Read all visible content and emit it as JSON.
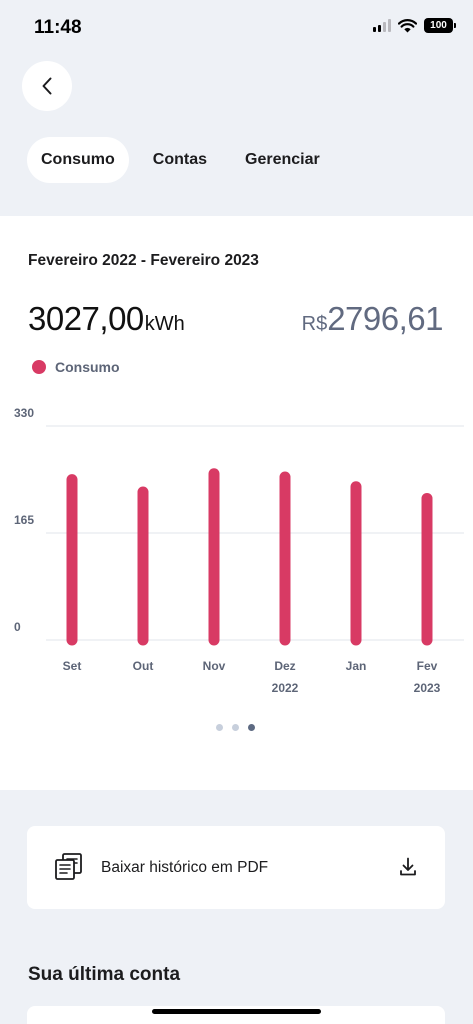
{
  "status_bar": {
    "time": "11:48",
    "battery": "100"
  },
  "tabs": [
    {
      "label": "Consumo",
      "active": true
    },
    {
      "label": "Contas",
      "active": false
    },
    {
      "label": "Gerenciar",
      "active": false
    }
  ],
  "summary": {
    "period": "Fevereiro 2022 - Fevereiro 2023",
    "kwh_value": "3027,00",
    "kwh_unit": "kWh",
    "price_currency": "R$",
    "price_value": "2796,61"
  },
  "legend": {
    "label": "Consumo"
  },
  "colors": {
    "accent": "#d83a64",
    "muted_text": "#5d6577",
    "price": "#616a80",
    "background": "#eef1f6"
  },
  "chart_data": {
    "type": "bar",
    "categories": [
      "Set",
      "Out",
      "Nov",
      "Dez",
      "Jan",
      "Fev"
    ],
    "year_labels": [
      "",
      "",
      "",
      "2022",
      "",
      "2023"
    ],
    "series": [
      {
        "name": "Consumo",
        "values": [
          255,
          236,
          264,
          259,
          244,
          226
        ]
      }
    ],
    "y_ticks": [
      "330",
      "165",
      "0"
    ],
    "ylim": [
      0,
      330
    ],
    "grid": true,
    "legend_position": "top-left"
  },
  "pager": {
    "count": 3,
    "active_index": 2
  },
  "pdf_download": {
    "label": "Baixar histórico em PDF"
  },
  "last_bill": {
    "title": "Sua última conta"
  }
}
